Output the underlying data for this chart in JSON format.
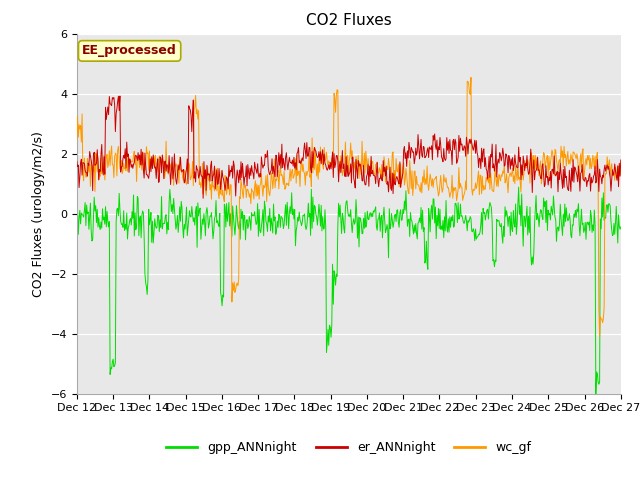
{
  "title": "CO2 Fluxes",
  "ylabel": "CO2 Fluxes (urology/m2/s)",
  "ylim": [
    -6,
    6
  ],
  "yticks": [
    -6,
    -4,
    -2,
    0,
    2,
    4,
    6
  ],
  "xlabel_ticks": [
    "Dec 12",
    "Dec 13",
    "Dec 14",
    "Dec 15",
    "Dec 16",
    "Dec 17",
    "Dec 18",
    "Dec 19",
    "Dec 20",
    "Dec 21",
    "Dec 22",
    "Dec 23",
    "Dec 24",
    "Dec 25",
    "Dec 26",
    "Dec 27"
  ],
  "color_gpp": "#00dd00",
  "color_er": "#cc0000",
  "color_wc": "#ff9900",
  "label_gpp": "gpp_ANNnight",
  "label_er": "er_ANNnight",
  "label_wc": "wc_gf",
  "annotation_text": "EE_processed",
  "annotation_color": "#880000",
  "annotation_bg": "#ffffcc",
  "annotation_edge": "#aaaa00",
  "bg_color": "#e8e8e8",
  "n_days": 15,
  "n_per_day": 48,
  "title_fontsize": 11,
  "axis_fontsize": 9,
  "tick_fontsize": 8,
  "legend_fontsize": 9
}
